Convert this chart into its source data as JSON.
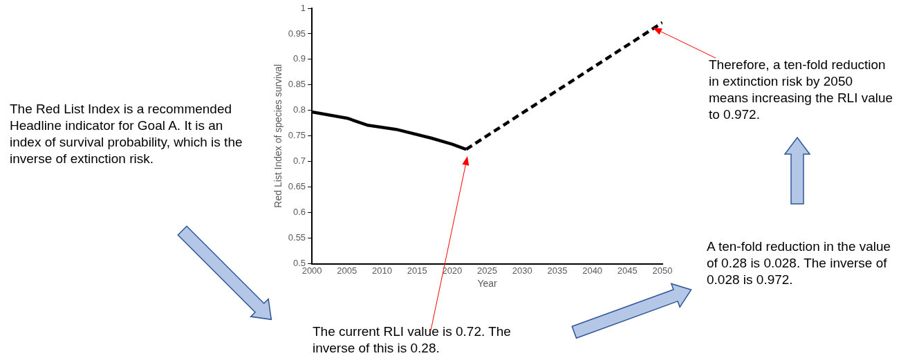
{
  "chart_data": {
    "type": "line",
    "xlabel": "Year",
    "ylabel": "Red List Index of species survival",
    "xlim": [
      2000,
      2050
    ],
    "xticks": [
      2000,
      2005,
      2010,
      2015,
      2020,
      2025,
      2030,
      2035,
      2040,
      2045,
      2050
    ],
    "ylim": [
      0.5,
      1
    ],
    "yticks": [
      0.5,
      0.55,
      0.6,
      0.65,
      0.7,
      0.75,
      0.8,
      0.85,
      0.9,
      0.95,
      1
    ],
    "grid": false,
    "legend": false,
    "marker": "none",
    "series": [
      {
        "color": "#000000",
        "line_style": "solid",
        "x": [
          2000,
          2005,
          2008,
          2012,
          2017,
          2020,
          2022
        ],
        "values": [
          0.797,
          0.785,
          0.771,
          0.763,
          0.746,
          0.734,
          0.724
        ]
      },
      {
        "color": "#000000",
        "line_style": "dashed",
        "x": [
          2022,
          2050
        ],
        "values": [
          0.724,
          0.972
        ]
      }
    ],
    "annotations": [
      "The Red List Index is a recommended Headline indicator for Goal A. It is an index of survival probability, which is the inverse of extinction risk.",
      "The current RLI value is 0.72. The inverse of this is 0.28.",
      "A ten-fold reduction in the value of 0.28 is 0.028. The inverse of 0.028 is 0.972.",
      "Therefore, a ten-fold reduction in extinction risk by 2050 means increasing the RLI value to 0.972."
    ]
  }
}
